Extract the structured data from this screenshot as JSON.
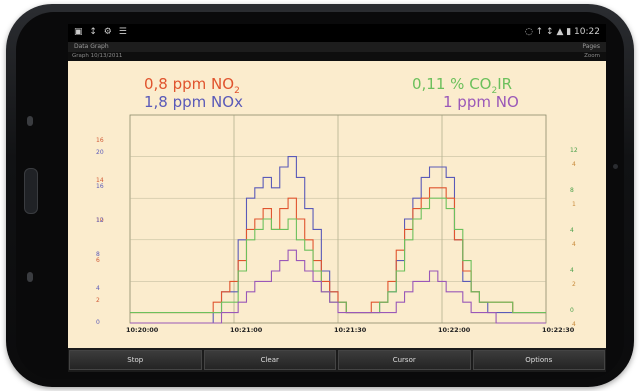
{
  "status_bar": {
    "left": "▣ ↕ ⚙ ☰",
    "right": "◌ ↑ ↕ ▲ ▮ 10:22"
  },
  "title_bar": {
    "left": "Data Graph",
    "right": "Pages"
  },
  "sub_bar": {
    "left": "Graph 10/13/2011",
    "right": "Zoom"
  },
  "readings": {
    "no2": {
      "value": "0,8 ppm NO",
      "sub": "2"
    },
    "nox": {
      "value": "1,8 ppm NOx"
    },
    "co2": {
      "value": "0,11 % CO",
      "sub": "2",
      "suffix": "IR"
    },
    "no": {
      "value": "1 ppm NO"
    }
  },
  "colors": {
    "no2": "#e0542e",
    "nox": "#5a5ab8",
    "co2": "#6cc05c",
    "no": "#9a58b8",
    "plot_bg": "#fbeccd"
  },
  "axes": {
    "left_red": [
      "16",
      "14",
      "10",
      "6",
      "2"
    ],
    "left_blue": [
      "20",
      "16",
      "12",
      "8",
      "4",
      "0"
    ],
    "right_green": [
      "12",
      "8",
      "4",
      "4",
      "0"
    ],
    "right_orange": [
      "4",
      "1",
      "4",
      "2",
      "4"
    ]
  },
  "x_ticks": [
    "10:20:00",
    "10:21:00",
    "10:21:30",
    "10:22:00",
    "10:22:30"
  ],
  "buttons": [
    "Stop",
    "Clear",
    "Cursor",
    "Options"
  ],
  "chart_data": {
    "type": "line",
    "x": [
      0,
      2,
      4,
      6,
      8,
      10,
      12,
      14,
      16,
      18,
      20,
      22,
      24,
      26,
      28,
      30,
      32,
      34,
      36,
      38,
      40,
      42,
      44,
      46,
      48,
      50,
      52,
      54,
      56,
      58,
      60,
      62,
      64,
      66,
      68,
      70,
      72,
      74,
      76,
      78,
      80,
      82,
      84,
      86,
      88,
      90,
      92,
      94,
      96,
      98,
      100
    ],
    "series": [
      {
        "name": "NOx",
        "color": "#5a5ab8",
        "values": [
          0,
          0,
          0,
          0,
          0,
          0,
          0,
          0,
          0,
          0,
          1,
          3,
          3,
          8,
          12,
          13,
          14,
          13,
          15,
          16,
          14,
          11,
          9,
          5,
          3,
          2,
          1,
          1,
          1,
          1,
          2,
          3,
          6,
          10,
          12,
          14,
          15,
          15,
          14,
          8,
          4,
          3,
          2,
          1,
          1,
          1,
          1,
          1,
          1,
          1,
          1
        ]
      },
      {
        "name": "NO2",
        "color": "#e0542e",
        "values": [
          1,
          1,
          1,
          1,
          1,
          1,
          1,
          1,
          1,
          1,
          2,
          3,
          4,
          6,
          9,
          10,
          11,
          9,
          11,
          12,
          10,
          8,
          6,
          4,
          3,
          2,
          1,
          1,
          1,
          2,
          2,
          4,
          7,
          9,
          11,
          12,
          13,
          13,
          12,
          8,
          5,
          3,
          2,
          2,
          2,
          2,
          1,
          1,
          1,
          1,
          1
        ]
      },
      {
        "name": "CO2",
        "color": "#6cc05c",
        "values": [
          1,
          1,
          1,
          1,
          1,
          1,
          1,
          1,
          1,
          1,
          1,
          2,
          2,
          5,
          8,
          9,
          10,
          9,
          9,
          10,
          8,
          7,
          5,
          3,
          2,
          2,
          1,
          1,
          1,
          1,
          2,
          3,
          5,
          8,
          10,
          11,
          12,
          12,
          11,
          9,
          6,
          3,
          2,
          2,
          2,
          2,
          1,
          1,
          1,
          1,
          1
        ]
      },
      {
        "name": "NO",
        "color": "#9a58b8",
        "values": [
          0,
          0,
          0,
          0,
          0,
          0,
          0,
          0,
          0,
          0,
          0,
          1,
          1,
          2,
          3,
          4,
          4,
          5,
          6,
          7,
          6,
          5,
          4,
          3,
          2,
          1,
          1,
          1,
          1,
          1,
          1,
          1,
          2,
          3,
          4,
          4,
          5,
          4,
          3,
          3,
          2,
          1,
          1,
          1,
          0,
          0,
          0,
          0,
          0,
          0,
          0
        ]
      }
    ],
    "ylim": [
      0,
      20
    ]
  }
}
